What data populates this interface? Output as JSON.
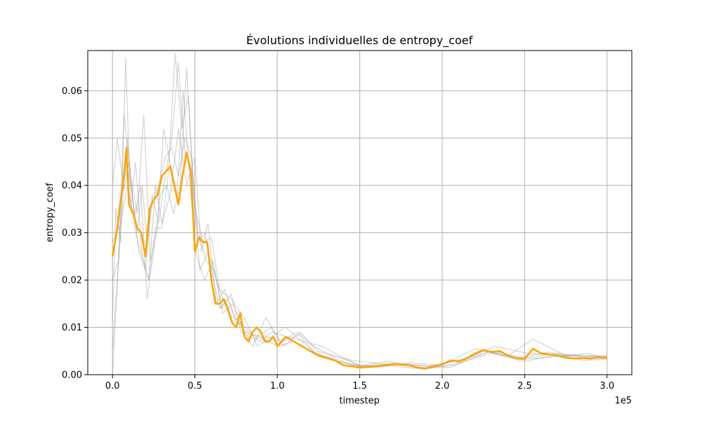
{
  "chart_data": {
    "type": "line",
    "title": "Évolutions individuelles de entropy_coef",
    "xlabel": "timestep",
    "ylabel": "entropy_coef",
    "x_scale_label": "1e5",
    "xlim": [
      -15000,
      315000
    ],
    "ylim": [
      0.0,
      0.0685
    ],
    "grid": true,
    "xticks": [
      0,
      50000,
      100000,
      150000,
      200000,
      250000,
      300000
    ],
    "xtick_labels": [
      "0.0",
      "0.5",
      "1.0",
      "1.5",
      "2.0",
      "2.5",
      "3.0"
    ],
    "yticks": [
      0.0,
      0.01,
      0.02,
      0.03,
      0.04,
      0.05,
      0.06
    ],
    "ytick_labels": [
      "0.00",
      "0.01",
      "0.02",
      "0.03",
      "0.04",
      "0.05",
      "0.06"
    ],
    "colors": {
      "individual": "#a0a0a0",
      "mean": "#ffa500",
      "grid": "#b0b0b0"
    },
    "mean_series": {
      "x": [
        0,
        2500,
        5000,
        7500,
        8500,
        10000,
        12500,
        15000,
        17500,
        20000,
        22500,
        25000,
        27500,
        30000,
        32500,
        35000,
        37500,
        40000,
        42500,
        45000,
        47500,
        50000,
        52500,
        55000,
        57500,
        60000,
        62500,
        65000,
        67500,
        70000,
        72500,
        75000,
        77500,
        80000,
        82500,
        85000,
        87500,
        90000,
        92500,
        95000,
        97500,
        100000,
        105000,
        110000,
        115000,
        120000,
        125000,
        130000,
        135000,
        140000,
        145000,
        150000,
        155000,
        160000,
        165000,
        170000,
        175000,
        180000,
        185000,
        190000,
        195000,
        200000,
        205000,
        210000,
        215000,
        220000,
        225000,
        230000,
        235000,
        240000,
        245000,
        250000,
        255000,
        260000,
        265000,
        270000,
        275000,
        280000,
        285000,
        290000,
        295000,
        300000
      ],
      "y": [
        0.025,
        0.03,
        0.037,
        0.043,
        0.048,
        0.036,
        0.034,
        0.031,
        0.03,
        0.025,
        0.035,
        0.037,
        0.038,
        0.042,
        0.043,
        0.044,
        0.04,
        0.036,
        0.042,
        0.047,
        0.043,
        0.026,
        0.029,
        0.028,
        0.028,
        0.02,
        0.015,
        0.015,
        0.016,
        0.014,
        0.011,
        0.01,
        0.013,
        0.008,
        0.007,
        0.009,
        0.01,
        0.009,
        0.007,
        0.007,
        0.008,
        0.006,
        0.008,
        0.007,
        0.006,
        0.005,
        0.004,
        0.0035,
        0.003,
        0.002,
        0.0018,
        0.0015,
        0.0016,
        0.0018,
        0.002,
        0.0022,
        0.0021,
        0.002,
        0.0015,
        0.0013,
        0.0018,
        0.0022,
        0.003,
        0.0028,
        0.0035,
        0.0045,
        0.0052,
        0.0048,
        0.005,
        0.004,
        0.0035,
        0.0033,
        0.0055,
        0.0045,
        0.0043,
        0.004,
        0.0036,
        0.0034,
        0.0035,
        0.0034,
        0.0037,
        0.0036
      ]
    },
    "individual_series": [
      {
        "x": [
          0,
          3000,
          6000,
          9000,
          12000,
          15000,
          18000,
          21000,
          24000,
          28000,
          32000,
          36000,
          40000,
          44000,
          48000,
          52000,
          56000,
          60000,
          65000,
          70000,
          76000,
          82000,
          90000,
          100000,
          110000,
          120000,
          135000,
          150000,
          170000,
          190000,
          210000,
          230000,
          250000,
          270000,
          300000
        ],
        "y": [
          0.0,
          0.02,
          0.041,
          0.05,
          0.038,
          0.03,
          0.04,
          0.028,
          0.036,
          0.04,
          0.046,
          0.048,
          0.042,
          0.05,
          0.046,
          0.028,
          0.03,
          0.022,
          0.014,
          0.016,
          0.011,
          0.009,
          0.008,
          0.006,
          0.007,
          0.005,
          0.003,
          0.0018,
          0.0022,
          0.0015,
          0.003,
          0.005,
          0.0035,
          0.0045,
          0.0035
        ]
      },
      {
        "x": [
          0,
          2000,
          5000,
          8000,
          11000,
          14000,
          18000,
          22000,
          26000,
          30000,
          34000,
          38000,
          42000,
          46000,
          50000,
          55000,
          60000,
          65000,
          72000,
          80000,
          88000,
          96000,
          105000,
          115000,
          125000,
          140000,
          160000,
          180000,
          200000,
          220000,
          240000,
          255000,
          275000,
          300000
        ],
        "y": [
          0.011,
          0.035,
          0.028,
          0.067,
          0.035,
          0.045,
          0.025,
          0.02,
          0.031,
          0.031,
          0.043,
          0.068,
          0.052,
          0.059,
          0.035,
          0.028,
          0.029,
          0.018,
          0.016,
          0.012,
          0.006,
          0.008,
          0.01,
          0.007,
          0.004,
          0.0025,
          0.0015,
          0.0025,
          0.002,
          0.0055,
          0.004,
          0.0075,
          0.004,
          0.0033
        ]
      },
      {
        "x": [
          0,
          4000,
          8000,
          12000,
          16000,
          20000,
          24000,
          28000,
          32000,
          36000,
          40000,
          44000,
          48000,
          52000,
          57000,
          62000,
          67000,
          73000,
          80000,
          88000,
          96000,
          104000,
          114000,
          124000,
          135000,
          150000,
          170000,
          190000,
          210000,
          230000,
          250000,
          270000,
          300000
        ],
        "y": [
          0.005,
          0.025,
          0.046,
          0.038,
          0.026,
          0.022,
          0.038,
          0.032,
          0.042,
          0.05,
          0.066,
          0.046,
          0.043,
          0.03,
          0.024,
          0.022,
          0.013,
          0.015,
          0.009,
          0.008,
          0.01,
          0.006,
          0.009,
          0.005,
          0.004,
          0.002,
          0.0018,
          0.0012,
          0.0025,
          0.0045,
          0.0028,
          0.0042,
          0.0038
        ]
      },
      {
        "x": [
          0,
          3000,
          7000,
          10000,
          14000,
          18000,
          22000,
          26000,
          30000,
          35000,
          40000,
          45000,
          50000,
          54000,
          58000,
          63000,
          68000,
          74000,
          81000,
          89000,
          97000,
          106000,
          116000,
          127000,
          138000,
          152000,
          172000,
          192000,
          212000,
          232000,
          252000,
          272000,
          300000
        ],
        "y": [
          0.04,
          0.05,
          0.039,
          0.045,
          0.03,
          0.025,
          0.02,
          0.04,
          0.032,
          0.038,
          0.052,
          0.04,
          0.046,
          0.026,
          0.032,
          0.015,
          0.018,
          0.012,
          0.01,
          0.007,
          0.009,
          0.008,
          0.007,
          0.006,
          0.004,
          0.0015,
          0.0025,
          0.0018,
          0.0032,
          0.006,
          0.0045,
          0.004,
          0.004
        ]
      },
      {
        "x": [
          0,
          5000,
          9000,
          13000,
          17000,
          21000,
          25000,
          29000,
          33000,
          37000,
          41000,
          45000,
          49000,
          53000,
          58000,
          64000,
          70000,
          77000,
          85000,
          93000,
          102000,
          112000,
          122000,
          133000,
          146000,
          165000,
          185000,
          205000,
          225000,
          245000,
          265000,
          285000,
          300000
        ],
        "y": [
          0.028,
          0.032,
          0.04,
          0.033,
          0.04,
          0.016,
          0.026,
          0.038,
          0.04,
          0.034,
          0.04,
          0.065,
          0.038,
          0.022,
          0.026,
          0.019,
          0.013,
          0.011,
          0.006,
          0.012,
          0.007,
          0.009,
          0.006,
          0.004,
          0.003,
          0.0022,
          0.002,
          0.0015,
          0.005,
          0.0035,
          0.0048,
          0.003,
          0.0033
        ]
      },
      {
        "x": [
          0,
          3500,
          7000,
          11000,
          15000,
          19000,
          23000,
          27000,
          31000,
          35000,
          39000,
          43000,
          47000,
          51000,
          56000,
          61000,
          66000,
          72000,
          78000,
          86000,
          94000,
          103000,
          113000,
          123000,
          134000,
          148000,
          168000,
          188000,
          208000,
          228000,
          248000,
          268000,
          288000,
          300000
        ],
        "y": [
          0.02,
          0.024,
          0.055,
          0.042,
          0.034,
          0.055,
          0.024,
          0.03,
          0.052,
          0.045,
          0.038,
          0.06,
          0.04,
          0.025,
          0.02,
          0.024,
          0.014,
          0.017,
          0.009,
          0.0075,
          0.008,
          0.007,
          0.0085,
          0.0045,
          0.0035,
          0.0018,
          0.0028,
          0.0012,
          0.002,
          0.0048,
          0.0032,
          0.0038,
          0.0045,
          0.0035
        ]
      }
    ]
  }
}
